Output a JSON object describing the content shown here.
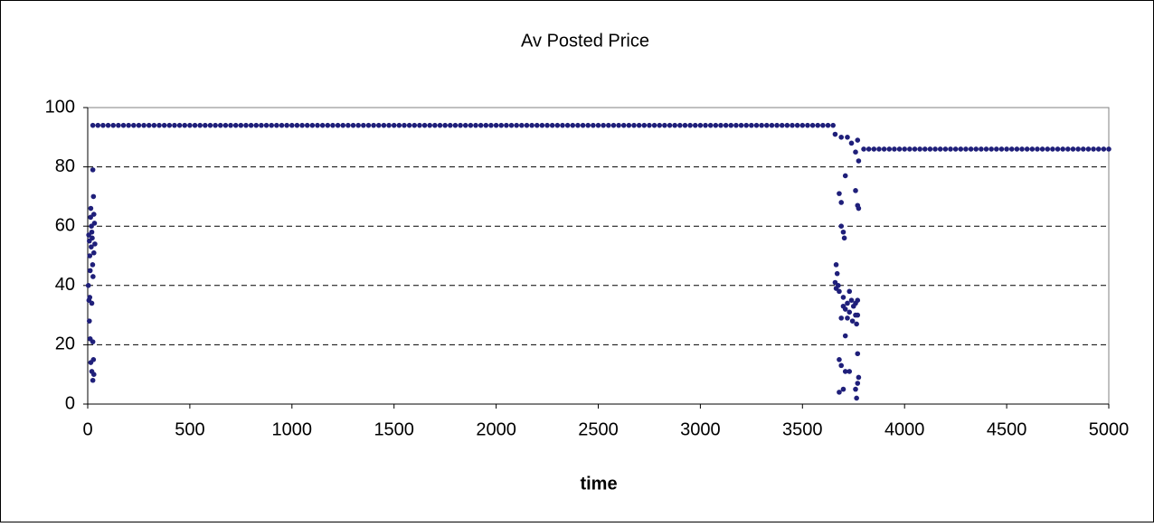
{
  "chart_data": {
    "type": "scatter",
    "title": "Av Posted Price",
    "x_label": "time",
    "color": "#1f1f7a",
    "grid": true,
    "xlim": [
      0,
      5000
    ],
    "xticks": [
      0,
      500,
      1000,
      1500,
      2000,
      2500,
      3000,
      3500,
      4000,
      4500,
      5000
    ],
    "ylim": [
      0,
      100
    ],
    "yticks": [
      0,
      20,
      40,
      60,
      80,
      100
    ],
    "x": [
      25,
      50,
      75,
      100,
      125,
      150,
      175,
      200,
      225,
      250,
      275,
      300,
      325,
      350,
      375,
      400,
      425,
      450,
      475,
      500,
      525,
      550,
      575,
      600,
      625,
      650,
      675,
      700,
      725,
      750,
      775,
      800,
      825,
      850,
      875,
      900,
      925,
      950,
      975,
      1000,
      1025,
      1050,
      1075,
      1100,
      1125,
      1150,
      1175,
      1200,
      1225,
      1250,
      1275,
      1300,
      1325,
      1350,
      1375,
      1400,
      1425,
      1450,
      1475,
      1500,
      1525,
      1550,
      1575,
      1600,
      1625,
      1650,
      1675,
      1700,
      1725,
      1750,
      1775,
      1800,
      1825,
      1850,
      1875,
      1900,
      1925,
      1950,
      1975,
      2000,
      2025,
      2050,
      2075,
      2100,
      2125,
      2150,
      2175,
      2200,
      2225,
      2250,
      2275,
      2300,
      2325,
      2350,
      2375,
      2400,
      2425,
      2450,
      2475,
      2500,
      2525,
      2550,
      2575,
      2600,
      2625,
      2650,
      2675,
      2700,
      2725,
      2750,
      2775,
      2800,
      2825,
      2850,
      2875,
      2900,
      2925,
      2950,
      2975,
      3000,
      3025,
      3050,
      3075,
      3100,
      3125,
      3150,
      3175,
      3200,
      3225,
      3250,
      3275,
      3300,
      3325,
      3350,
      3375,
      3400,
      3425,
      3450,
      3475,
      3500,
      3525,
      3550,
      3575,
      3600,
      3625,
      3650,
      3800,
      3825,
      3850,
      3875,
      3900,
      3925,
      3950,
      3975,
      4000,
      4025,
      4050,
      4075,
      4100,
      4125,
      4150,
      4175,
      4200,
      4225,
      4250,
      4275,
      4300,
      4325,
      4350,
      4375,
      4400,
      4425,
      4450,
      4475,
      4500,
      4525,
      4550,
      4575,
      4600,
      4625,
      4650,
      4675,
      4700,
      4725,
      4750,
      4775,
      4800,
      4825,
      4850,
      4875,
      4900,
      4925,
      4950,
      4975,
      5000,
      5,
      8,
      10,
      12,
      3,
      6,
      15,
      18,
      20,
      22,
      25,
      28,
      30,
      14,
      17,
      24,
      26,
      30,
      33,
      35,
      10,
      20,
      8,
      12,
      25,
      15,
      28,
      20,
      30,
      25,
      3660,
      3690,
      3720,
      3740,
      3770,
      3760,
      3775,
      3710,
      3680,
      3690,
      3760,
      3770,
      3775,
      3690,
      3700,
      3705,
      3665,
      3670,
      3660,
      3665,
      3675,
      3680,
      3700,
      3730,
      3740,
      3720,
      3700,
      3750,
      3760,
      3770,
      3710,
      3730,
      3760,
      3770,
      3690,
      3720,
      3745,
      3765,
      3710,
      3770,
      3680,
      3690,
      3710,
      3730,
      3775,
      3770,
      3760,
      3700,
      3680,
      3765
    ],
    "values": [
      94,
      94,
      94,
      94,
      94,
      94,
      94,
      94,
      94,
      94,
      94,
      94,
      94,
      94,
      94,
      94,
      94,
      94,
      94,
      94,
      94,
      94,
      94,
      94,
      94,
      94,
      94,
      94,
      94,
      94,
      94,
      94,
      94,
      94,
      94,
      94,
      94,
      94,
      94,
      94,
      94,
      94,
      94,
      94,
      94,
      94,
      94,
      94,
      94,
      94,
      94,
      94,
      94,
      94,
      94,
      94,
      94,
      94,
      94,
      94,
      94,
      94,
      94,
      94,
      94,
      94,
      94,
      94,
      94,
      94,
      94,
      94,
      94,
      94,
      94,
      94,
      94,
      94,
      94,
      94,
      94,
      94,
      94,
      94,
      94,
      94,
      94,
      94,
      94,
      94,
      94,
      94,
      94,
      94,
      94,
      94,
      94,
      94,
      94,
      94,
      94,
      94,
      94,
      94,
      94,
      94,
      94,
      94,
      94,
      94,
      94,
      94,
      94,
      94,
      94,
      94,
      94,
      94,
      94,
      94,
      94,
      94,
      94,
      94,
      94,
      94,
      94,
      94,
      94,
      94,
      94,
      94,
      94,
      94,
      94,
      94,
      94,
      94,
      94,
      94,
      94,
      94,
      94,
      94,
      94,
      94,
      86,
      86,
      86,
      86,
      86,
      86,
      86,
      86,
      86,
      86,
      86,
      86,
      86,
      86,
      86,
      86,
      86,
      86,
      86,
      86,
      86,
      86,
      86,
      86,
      86,
      86,
      86,
      86,
      86,
      86,
      86,
      86,
      86,
      86,
      86,
      86,
      86,
      86,
      86,
      86,
      86,
      86,
      86,
      86,
      86,
      86,
      86,
      86,
      86,
      57,
      55,
      50,
      45,
      40,
      35,
      66,
      60,
      58,
      56,
      79,
      70,
      64,
      63,
      53,
      47,
      43,
      51,
      61,
      54,
      36,
      34,
      28,
      22,
      21,
      14,
      15,
      11,
      10,
      8,
      91,
      90,
      90,
      88,
      89,
      85,
      82,
      77,
      71,
      68,
      72,
      67,
      66,
      60,
      58,
      56,
      47,
      44,
      41,
      39,
      40,
      38,
      36,
      38,
      35,
      34,
      33,
      33,
      34,
      35,
      32,
      31,
      30,
      30,
      29,
      29,
      28,
      27,
      23,
      17,
      15,
      13,
      11,
      11,
      9,
      7,
      5,
      5,
      4,
      2
    ]
  }
}
